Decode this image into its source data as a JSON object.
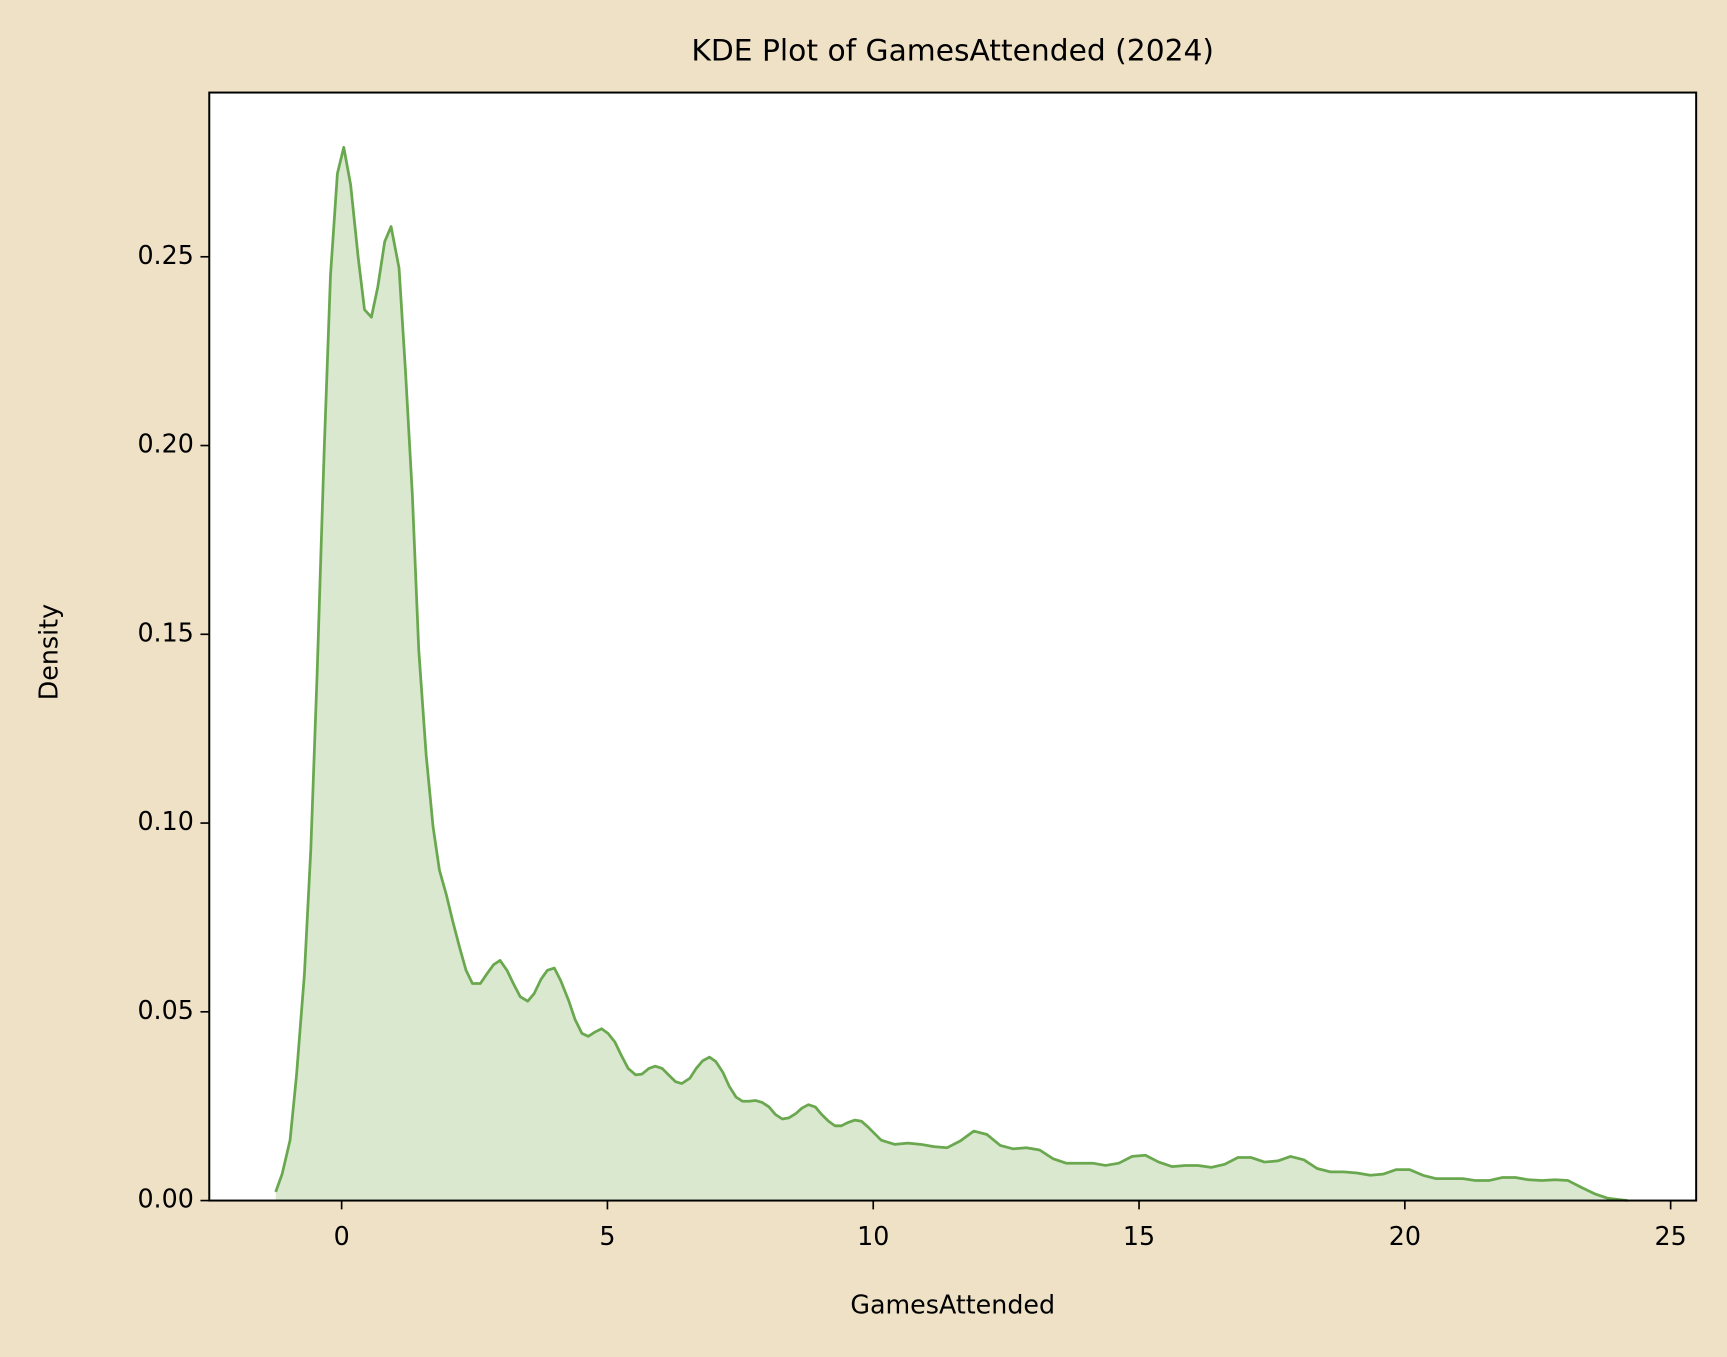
{
  "chart_data": {
    "type": "kde",
    "title": "KDE Plot of GamesAttended (2024)",
    "x_label": "GamesAttended",
    "y_label": "Density",
    "color": "#6aa84f",
    "fill_color": "#d9e8cf",
    "x": [
      -1.24,
      -1.12,
      -0.97,
      -0.85,
      -0.7,
      -0.58,
      -0.46,
      -0.33,
      -0.21,
      -0.08,
      0.04,
      0.17,
      0.31,
      0.43,
      0.56,
      0.68,
      0.81,
      0.93,
      1.08,
      1.2,
      1.33,
      1.45,
      1.59,
      1.72,
      1.84,
      1.97,
      2.09,
      2.22,
      2.34,
      2.46,
      2.61,
      2.73,
      2.86,
      2.98,
      3.11,
      3.23,
      3.36,
      3.5,
      3.62,
      3.75,
      3.87,
      4.0,
      4.12,
      4.27,
      4.39,
      4.52,
      4.64,
      4.76,
      4.89,
      5.01,
      5.14,
      5.26,
      5.39,
      5.53,
      5.65,
      5.78,
      5.9,
      6.03,
      6.15,
      6.28,
      6.4,
      6.55,
      6.67,
      6.79,
      6.92,
      7.04,
      7.17,
      7.29,
      7.42,
      7.54,
      7.66,
      7.79,
      7.91,
      8.04,
      8.16,
      8.29,
      8.41,
      8.54,
      8.66,
      8.78,
      8.91,
      9.03,
      9.16,
      9.28,
      9.4,
      9.53,
      9.65,
      9.78,
      9.9,
      10.15,
      10.4,
      10.65,
      10.89,
      11.14,
      11.39,
      11.64,
      11.89,
      12.14,
      12.39,
      12.63,
      12.88,
      13.13,
      13.38,
      13.63,
      13.88,
      14.13,
      14.37,
      14.62,
      14.87,
      15.12,
      15.37,
      15.62,
      15.87,
      16.11,
      16.36,
      16.61,
      16.86,
      17.11,
      17.36,
      17.61,
      17.85,
      18.1,
      18.35,
      18.6,
      18.85,
      19.1,
      19.35,
      19.59,
      19.84,
      20.09,
      20.34,
      20.59,
      20.84,
      21.09,
      21.33,
      21.58,
      21.83,
      22.08,
      22.33,
      22.58,
      22.83,
      23.07,
      23.32,
      23.57,
      23.82,
      24.19
    ],
    "values": [
      0.0023,
      0.007,
      0.016,
      0.033,
      0.06,
      0.093,
      0.14,
      0.198,
      0.245,
      0.272,
      0.279,
      0.269,
      0.25,
      0.236,
      0.234,
      0.242,
      0.254,
      0.258,
      0.247,
      0.22,
      0.187,
      0.146,
      0.118,
      0.099,
      0.0875,
      0.081,
      0.074,
      0.067,
      0.061,
      0.0575,
      0.0575,
      0.06,
      0.0625,
      0.0636,
      0.061,
      0.0575,
      0.054,
      0.0528,
      0.0548,
      0.0586,
      0.061,
      0.0616,
      0.0583,
      0.053,
      0.048,
      0.0443,
      0.0435,
      0.0446,
      0.0455,
      0.0443,
      0.042,
      0.0385,
      0.035,
      0.0333,
      0.0335,
      0.035,
      0.0356,
      0.035,
      0.0333,
      0.0315,
      0.031,
      0.0324,
      0.035,
      0.037,
      0.038,
      0.0368,
      0.034,
      0.0303,
      0.0274,
      0.0263,
      0.0263,
      0.0265,
      0.026,
      0.0248,
      0.0228,
      0.0216,
      0.0219,
      0.023,
      0.0245,
      0.0254,
      0.0248,
      0.0228,
      0.021,
      0.0198,
      0.0198,
      0.0207,
      0.0213,
      0.021,
      0.0195,
      0.016,
      0.0149,
      0.0152,
      0.0149,
      0.0143,
      0.014,
      0.0158,
      0.0184,
      0.0175,
      0.0146,
      0.0137,
      0.014,
      0.0134,
      0.0111,
      0.0099,
      0.0099,
      0.0099,
      0.0093,
      0.0099,
      0.0117,
      0.012,
      0.0102,
      0.009,
      0.0093,
      0.0093,
      0.0088,
      0.0096,
      0.0114,
      0.0114,
      0.0102,
      0.0105,
      0.0117,
      0.0108,
      0.0085,
      0.0076,
      0.0076,
      0.0073,
      0.0067,
      0.007,
      0.0082,
      0.0082,
      0.0067,
      0.0058,
      0.0058,
      0.0058,
      0.0053,
      0.0053,
      0.0061,
      0.0061,
      0.0055,
      0.0053,
      0.0055,
      0.0053,
      0.0035,
      0.0018,
      0.0006,
      0.0
    ],
    "xlim": [
      -2.49,
      25.48
    ],
    "ylim": [
      0,
      0.2935
    ],
    "xticks": [
      0,
      5,
      10,
      15,
      20,
      25
    ],
    "yticks": [
      {
        "value": 0,
        "label": "0.00"
      },
      0.05,
      {
        "value": 0.1,
        "label": "0.10"
      },
      0.15,
      {
        "value": 0.2,
        "label": "0.20"
      },
      0.25
    ]
  }
}
